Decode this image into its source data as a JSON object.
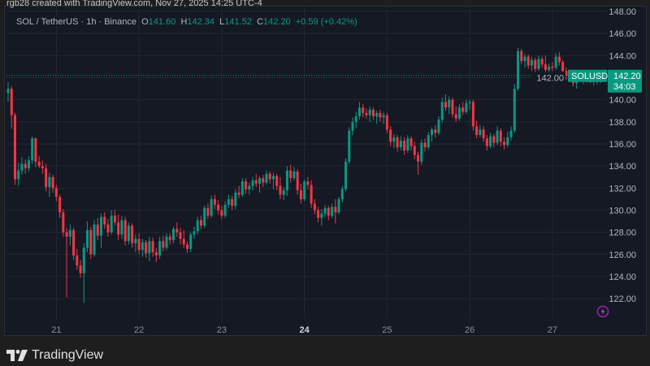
{
  "credit": "rgb28 created with TradingView.com, Nov 27, 2025 14:25 UTC-4",
  "legend": {
    "symbol": "SOL / TetherUS · 1h · Binance",
    "o_label": "O",
    "o": "141.60",
    "h_label": "H",
    "h": "142.34",
    "l_label": "L",
    "l": "141.52",
    "c_label": "C",
    "c": "142.20",
    "change": "+0.59 (+0.42%)"
  },
  "price_tag": {
    "symbol": "SOLUSDT",
    "price": "142.20",
    "countdown": "34:03"
  },
  "brand": "TradingView",
  "colors": {
    "up": "#089981",
    "down": "#f23645",
    "background": "#151924",
    "grid": "#232733",
    "axis_text": "#b2b5be",
    "alert_icon": "#9c27b0"
  },
  "icons": [
    "tradingview-logo-icon",
    "lightning-alert-icon"
  ],
  "chart_data": {
    "type": "candlestick",
    "interval": "1h",
    "start": "2025-11-20 10:00",
    "ylim": [
      121,
      148.5
    ],
    "grid": true,
    "y_ticks": [
      "148.00",
      "146.00",
      "144.00",
      "142.00",
      "140.00",
      "138.00",
      "136.00",
      "134.00",
      "132.00",
      "130.00",
      "128.00",
      "126.00",
      "124.00",
      "122.00"
    ],
    "x_ticks": [
      {
        "label": "21",
        "day": 21
      },
      {
        "label": "22",
        "day": 22
      },
      {
        "label": "23",
        "day": 23
      },
      {
        "label": "24",
        "day": 24,
        "bold": true
      },
      {
        "label": "25",
        "day": 25
      },
      {
        "label": "26",
        "day": 26
      },
      {
        "label": "27",
        "day": 27
      }
    ],
    "last_price": 142.2,
    "candles": [
      [
        140.6,
        141.6,
        139.8,
        141.0
      ],
      [
        141.0,
        141.2,
        137.4,
        138.6
      ],
      [
        138.6,
        138.8,
        132.3,
        132.8
      ],
      [
        132.8,
        134.3,
        132.2,
        133.6
      ],
      [
        133.6,
        134.8,
        133.2,
        134.2
      ],
      [
        134.2,
        134.6,
        133.3,
        133.8
      ],
      [
        133.8,
        134.9,
        133.5,
        134.5
      ],
      [
        134.5,
        136.7,
        134.2,
        136.5
      ],
      [
        136.5,
        136.6,
        133.9,
        134.4
      ],
      [
        134.4,
        134.9,
        133.8,
        134.0
      ],
      [
        134.0,
        134.5,
        133.3,
        133.8
      ],
      [
        133.8,
        134.2,
        131.7,
        132.1
      ],
      [
        132.1,
        133.4,
        131.2,
        133.0
      ],
      [
        133.0,
        133.2,
        131.6,
        132.0
      ],
      [
        132.0,
        132.3,
        130.8,
        131.2
      ],
      [
        131.2,
        131.4,
        129.3,
        129.8
      ],
      [
        129.8,
        130.1,
        127.6,
        128.0
      ],
      [
        128.0,
        128.4,
        122.1,
        127.6
      ],
      [
        127.6,
        128.7,
        126.8,
        128.2
      ],
      [
        128.2,
        128.4,
        125.5,
        125.9
      ],
      [
        125.9,
        126.5,
        124.6,
        125.0
      ],
      [
        125.0,
        125.5,
        123.9,
        124.3
      ],
      [
        124.3,
        127.0,
        121.6,
        126.6
      ],
      [
        126.6,
        129.0,
        126.2,
        128.2
      ],
      [
        128.2,
        128.5,
        125.6,
        126.0
      ],
      [
        126.0,
        129.1,
        125.8,
        128.7
      ],
      [
        128.7,
        129.3,
        127.3,
        127.7
      ],
      [
        127.7,
        129.7,
        126.6,
        129.4
      ],
      [
        129.4,
        129.8,
        128.3,
        128.7
      ],
      [
        128.7,
        129.2,
        127.6,
        128.0
      ],
      [
        128.0,
        130.0,
        127.8,
        129.5
      ],
      [
        129.5,
        130.0,
        128.6,
        128.9
      ],
      [
        128.9,
        129.6,
        127.3,
        127.8
      ],
      [
        127.8,
        129.5,
        127.4,
        129.1
      ],
      [
        129.1,
        129.4,
        126.8,
        127.2
      ],
      [
        127.2,
        128.9,
        126.9,
        128.6
      ],
      [
        128.6,
        128.8,
        126.6,
        127.0
      ],
      [
        127.0,
        127.8,
        126.2,
        127.4
      ],
      [
        127.4,
        127.9,
        126.0,
        126.4
      ],
      [
        126.4,
        127.4,
        125.8,
        127.1
      ],
      [
        127.1,
        127.3,
        125.7,
        126.1
      ],
      [
        126.1,
        127.6,
        125.4,
        127.2
      ],
      [
        127.2,
        127.5,
        125.8,
        126.2
      ],
      [
        126.2,
        126.6,
        125.3,
        125.9
      ],
      [
        125.9,
        127.6,
        125.6,
        127.2
      ],
      [
        127.2,
        127.7,
        126.3,
        126.6
      ],
      [
        126.6,
        127.9,
        126.4,
        127.6
      ],
      [
        127.6,
        127.9,
        126.9,
        127.3
      ],
      [
        127.3,
        128.5,
        127.0,
        128.3
      ],
      [
        128.3,
        128.9,
        127.6,
        128.0
      ],
      [
        128.0,
        128.4,
        126.9,
        127.4
      ],
      [
        127.4,
        128.2,
        126.6,
        126.9
      ],
      [
        126.9,
        127.2,
        126.1,
        126.5
      ],
      [
        126.5,
        128.0,
        126.2,
        127.8
      ],
      [
        127.8,
        128.5,
        127.4,
        128.1
      ],
      [
        128.1,
        129.4,
        127.8,
        129.1
      ],
      [
        129.1,
        129.5,
        128.3,
        128.6
      ],
      [
        128.6,
        130.4,
        128.4,
        130.2
      ],
      [
        130.2,
        130.6,
        129.2,
        129.5
      ],
      [
        129.5,
        131.3,
        129.3,
        131.0
      ],
      [
        131.0,
        131.4,
        130.1,
        130.5
      ],
      [
        130.5,
        130.9,
        129.6,
        130.0
      ],
      [
        130.0,
        130.4,
        129.2,
        129.5
      ],
      [
        129.5,
        130.8,
        129.3,
        130.5
      ],
      [
        130.5,
        131.4,
        130.2,
        131.0
      ],
      [
        131.0,
        131.3,
        130.0,
        130.4
      ],
      [
        130.4,
        131.9,
        130.1,
        131.6
      ],
      [
        131.6,
        132.2,
        131.1,
        131.4
      ],
      [
        131.4,
        132.9,
        131.2,
        132.6
      ],
      [
        132.6,
        132.9,
        131.5,
        131.9
      ],
      [
        131.9,
        132.5,
        131.4,
        132.2
      ],
      [
        132.2,
        133.0,
        131.8,
        132.7
      ],
      [
        132.7,
        133.3,
        132.1,
        132.4
      ],
      [
        132.4,
        133.1,
        131.6,
        132.9
      ],
      [
        132.9,
        133.2,
        132.1,
        132.5
      ],
      [
        132.5,
        133.6,
        132.3,
        133.3
      ],
      [
        133.3,
        133.5,
        132.4,
        132.8
      ],
      [
        132.8,
        133.4,
        131.9,
        133.1
      ],
      [
        133.1,
        133.3,
        131.8,
        132.2
      ],
      [
        132.2,
        133.0,
        131.0,
        131.4
      ],
      [
        131.4,
        132.1,
        130.9,
        131.8
      ],
      [
        131.8,
        134.0,
        131.3,
        133.6
      ],
      [
        133.6,
        134.1,
        132.5,
        132.9
      ],
      [
        132.9,
        133.9,
        132.7,
        133.5
      ],
      [
        133.5,
        133.7,
        131.4,
        131.8
      ],
      [
        131.8,
        132.4,
        130.6,
        131.0
      ],
      [
        131.0,
        132.8,
        130.8,
        132.6
      ],
      [
        132.6,
        133.0,
        131.9,
        132.3
      ],
      [
        132.3,
        132.7,
        130.2,
        130.6
      ],
      [
        130.6,
        131.0,
        129.6,
        130.0
      ],
      [
        130.0,
        130.3,
        128.9,
        129.3
      ],
      [
        129.3,
        130.1,
        128.6,
        129.7
      ],
      [
        129.7,
        130.5,
        129.4,
        130.2
      ],
      [
        130.2,
        130.4,
        129.1,
        129.5
      ],
      [
        129.5,
        130.6,
        129.3,
        130.3
      ],
      [
        130.3,
        131.0,
        128.8,
        129.8
      ],
      [
        129.8,
        131.2,
        129.6,
        131.0
      ],
      [
        131.0,
        132.2,
        130.7,
        131.9
      ],
      [
        131.9,
        134.7,
        131.7,
        134.4
      ],
      [
        134.4,
        137.5,
        134.2,
        137.2
      ],
      [
        137.2,
        138.4,
        136.8,
        138.0
      ],
      [
        138.0,
        138.9,
        137.4,
        138.5
      ],
      [
        138.5,
        139.8,
        138.2,
        139.3
      ],
      [
        139.3,
        139.6,
        138.4,
        138.8
      ],
      [
        138.8,
        139.2,
        138.3,
        138.6
      ],
      [
        138.6,
        139.4,
        138.0,
        139.1
      ],
      [
        139.1,
        139.3,
        138.2,
        138.5
      ],
      [
        138.5,
        139.0,
        137.8,
        138.8
      ],
      [
        138.8,
        139.1,
        138.0,
        138.4
      ],
      [
        138.4,
        138.9,
        137.8,
        138.6
      ],
      [
        138.6,
        138.8,
        137.0,
        137.3
      ],
      [
        137.3,
        137.6,
        135.8,
        136.2
      ],
      [
        136.2,
        136.9,
        135.6,
        136.6
      ],
      [
        136.6,
        136.8,
        135.3,
        135.7
      ],
      [
        135.7,
        136.7,
        135.4,
        136.3
      ],
      [
        136.3,
        136.6,
        135.0,
        135.4
      ],
      [
        135.4,
        136.8,
        135.2,
        136.5
      ],
      [
        136.5,
        136.7,
        135.4,
        135.8
      ],
      [
        135.8,
        136.2,
        134.6,
        135.0
      ],
      [
        135.0,
        135.3,
        133.2,
        134.4
      ],
      [
        134.4,
        136.4,
        134.1,
        136.1
      ],
      [
        136.1,
        136.5,
        135.3,
        135.7
      ],
      [
        135.7,
        137.1,
        135.5,
        136.8
      ],
      [
        136.8,
        137.5,
        136.2,
        137.3
      ],
      [
        137.3,
        137.7,
        136.6,
        137.0
      ],
      [
        137.0,
        138.5,
        136.8,
        138.2
      ],
      [
        138.2,
        140.2,
        137.9,
        139.8
      ],
      [
        139.8,
        140.5,
        139.0,
        139.3
      ],
      [
        139.3,
        140.3,
        138.7,
        140.0
      ],
      [
        140.0,
        140.2,
        138.4,
        138.7
      ],
      [
        138.7,
        139.4,
        138.0,
        138.3
      ],
      [
        138.3,
        139.6,
        138.1,
        139.3
      ],
      [
        139.3,
        139.8,
        138.6,
        138.9
      ],
      [
        138.9,
        140.0,
        138.7,
        139.7
      ],
      [
        139.7,
        140.0,
        139.1,
        139.8
      ],
      [
        139.8,
        140.0,
        137.2,
        137.6
      ],
      [
        137.6,
        138.1,
        136.5,
        136.8
      ],
      [
        136.8,
        137.7,
        136.6,
        137.3
      ],
      [
        137.3,
        137.6,
        136.2,
        136.5
      ],
      [
        136.5,
        136.8,
        135.4,
        135.8
      ],
      [
        135.8,
        137.0,
        135.6,
        136.7
      ],
      [
        136.7,
        136.9,
        135.7,
        136.1
      ],
      [
        136.1,
        137.6,
        135.9,
        137.2
      ],
      [
        137.2,
        137.4,
        135.8,
        136.2
      ],
      [
        136.2,
        136.6,
        135.5,
        135.9
      ],
      [
        135.9,
        137.1,
        135.7,
        136.6
      ],
      [
        136.6,
        137.6,
        136.3,
        137.2
      ],
      [
        137.2,
        141.4,
        137.0,
        141.0
      ],
      [
        141.0,
        144.7,
        140.8,
        144.4
      ],
      [
        144.4,
        144.6,
        143.2,
        143.5
      ],
      [
        143.5,
        144.2,
        142.9,
        143.9
      ],
      [
        143.9,
        144.1,
        142.8,
        143.1
      ],
      [
        143.1,
        143.9,
        142.6,
        143.6
      ],
      [
        143.6,
        143.8,
        142.5,
        142.8
      ],
      [
        142.8,
        144.0,
        142.6,
        143.7
      ],
      [
        143.7,
        143.9,
        142.9,
        143.2
      ],
      [
        143.2,
        144.0,
        142.5,
        142.7
      ],
      [
        142.7,
        143.3,
        142.3,
        143.0
      ],
      [
        143.0,
        143.4,
        142.6,
        142.9
      ],
      [
        142.9,
        144.2,
        142.7,
        143.9
      ],
      [
        143.9,
        144.3,
        143.1,
        143.4
      ],
      [
        143.4,
        143.6,
        142.3,
        142.6
      ],
      [
        142.6,
        142.9,
        141.8,
        142.2
      ],
      [
        142.2,
        142.5,
        141.6,
        141.9
      ],
      [
        141.9,
        142.1,
        141.2,
        141.5
      ],
      [
        141.5,
        142.2,
        141.0,
        141.9
      ],
      [
        141.9,
        142.3,
        141.6,
        142.1
      ],
      [
        142.1,
        142.4,
        141.4,
        141.7
      ],
      [
        141.7,
        142.3,
        141.5,
        142.0
      ],
      [
        142.0,
        142.2,
        141.5,
        141.6
      ],
      [
        141.6,
        142.0,
        141.3,
        141.8
      ],
      [
        141.8,
        142.1,
        141.4,
        141.6
      ],
      [
        141.6,
        142.34,
        141.52,
        142.2
      ]
    ]
  }
}
